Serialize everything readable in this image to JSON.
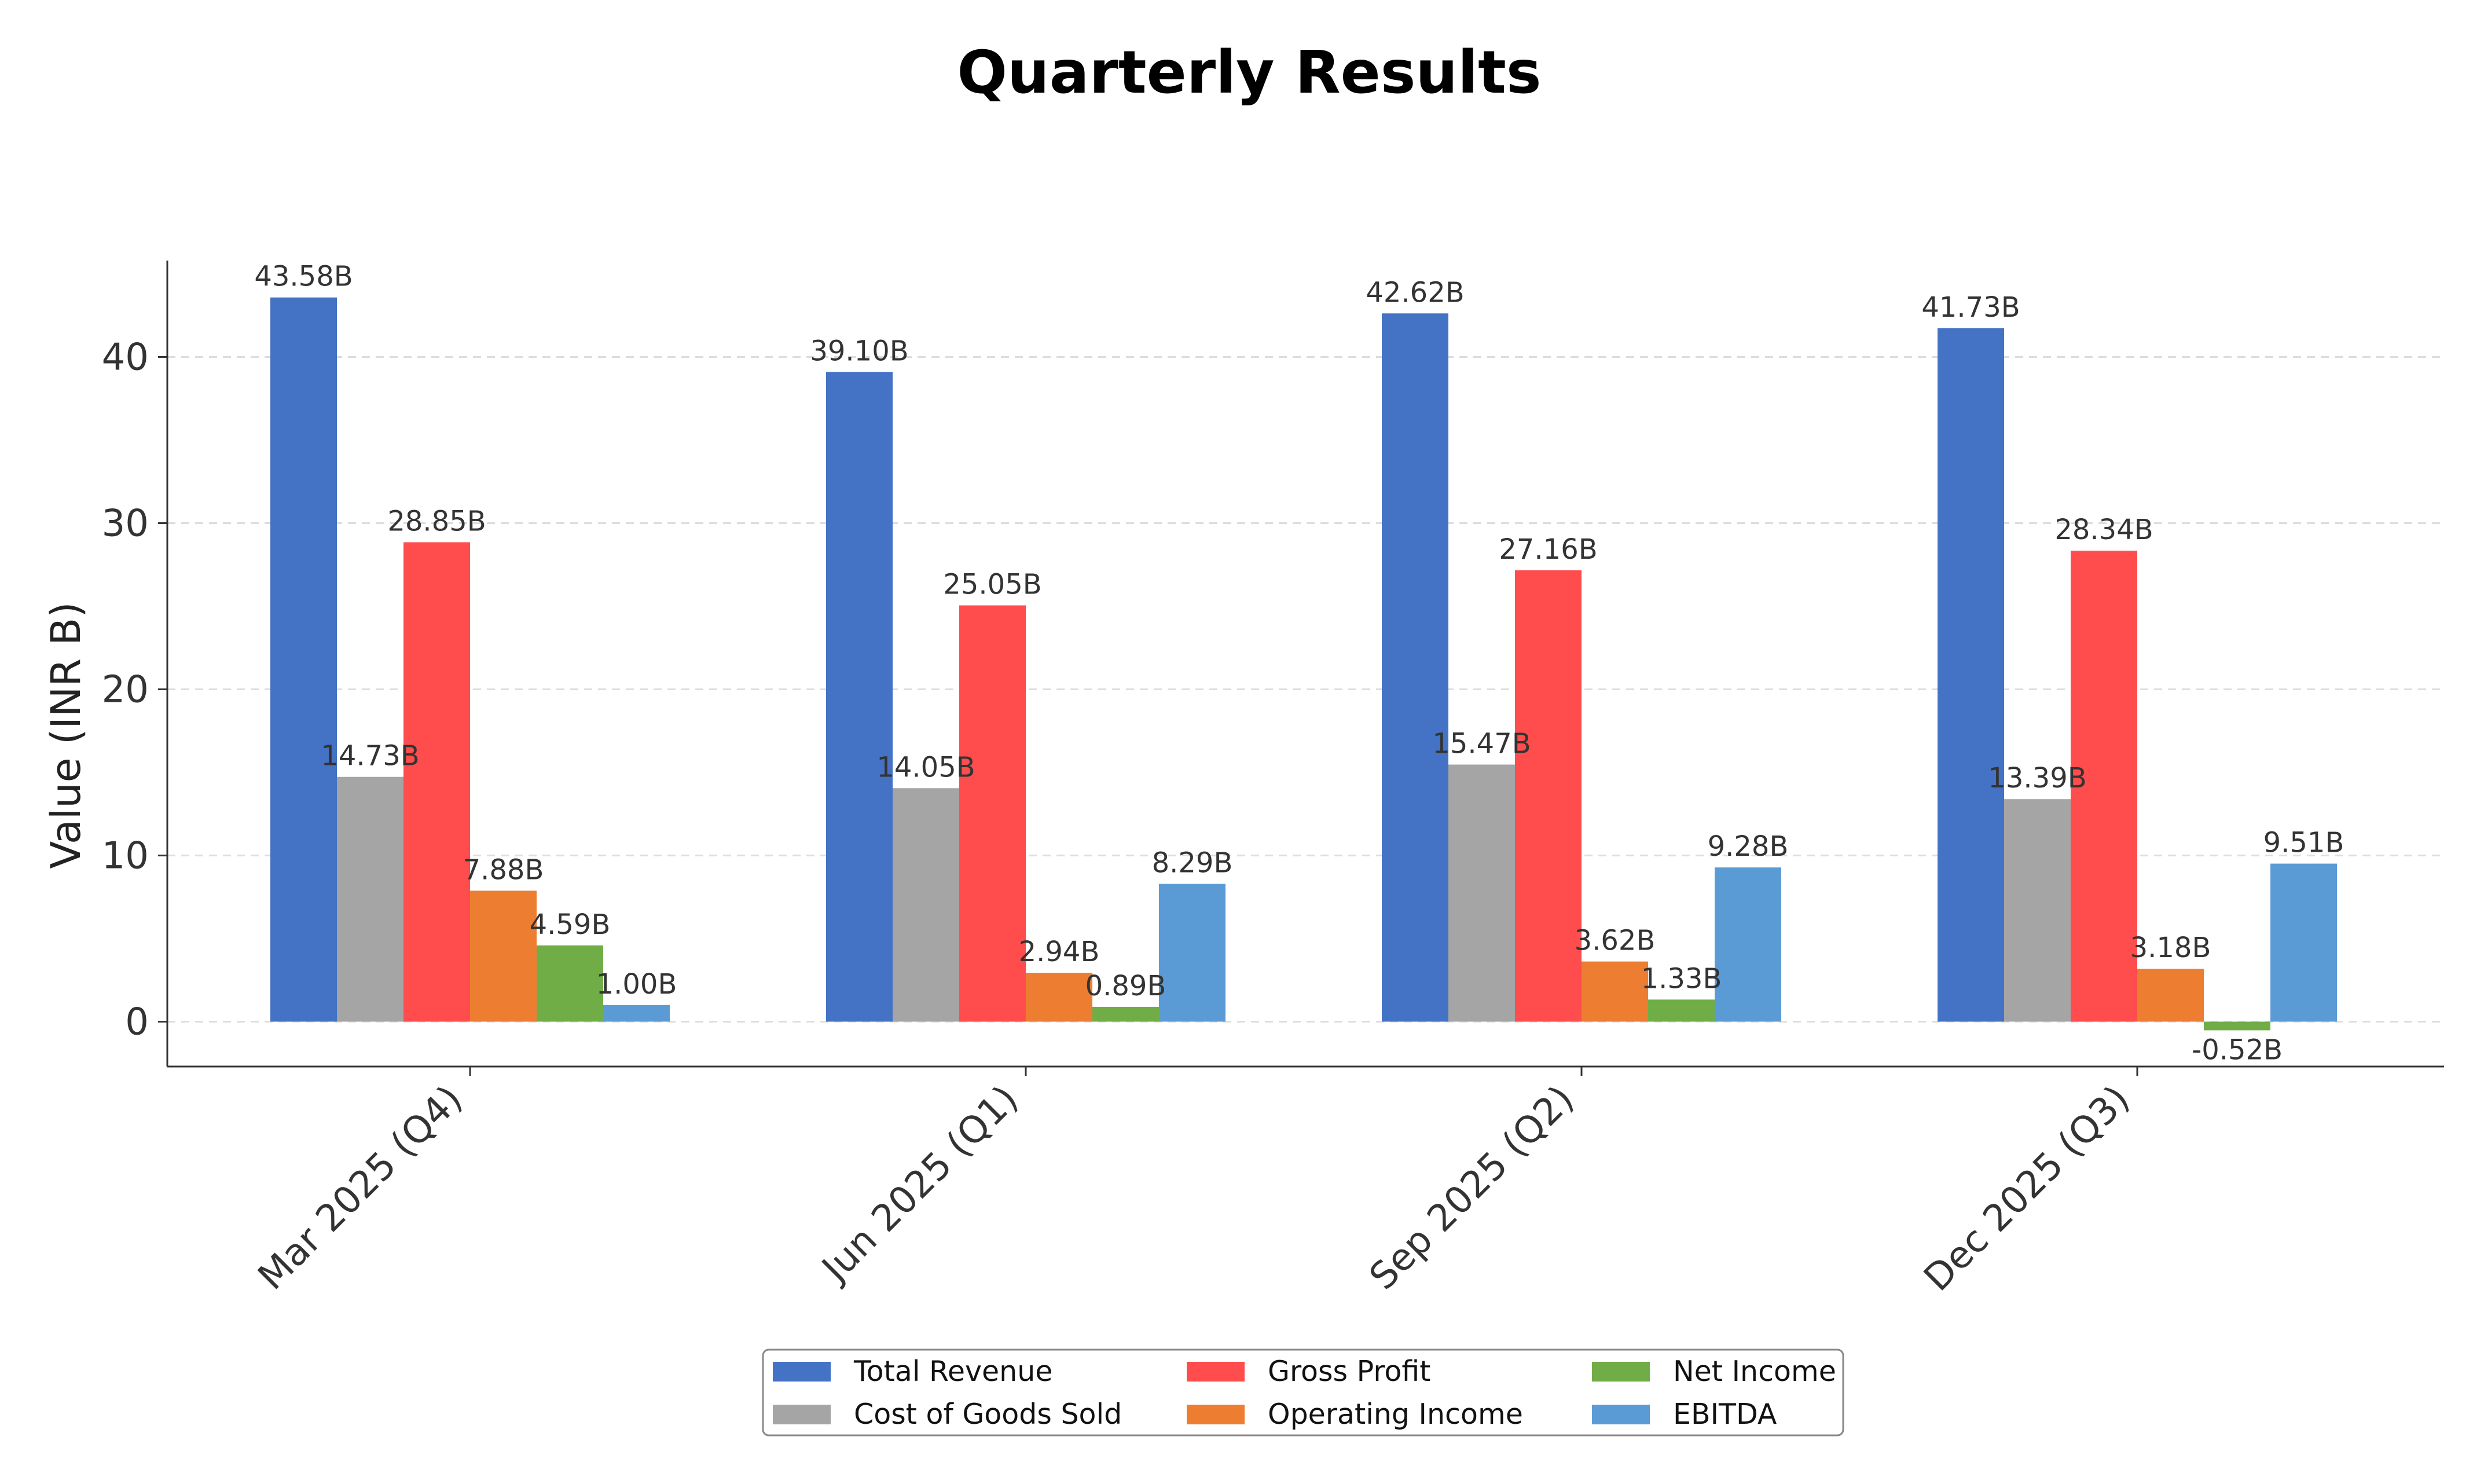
{
  "chart_data": {
    "type": "bar",
    "title": "Quarterly Results",
    "xlabel": "",
    "ylabel": "Value (INR B)",
    "ylim": [
      -2.7,
      45.8
    ],
    "yticks": [
      0,
      10,
      20,
      30,
      40
    ],
    "grid": "y-dashed",
    "legend_position": "bottom-center",
    "categories": [
      "Mar 2025 (Q4)",
      "Jun 2025 (Q1)",
      "Sep 2025 (Q2)",
      "Dec 2025 (Q3)"
    ],
    "series": [
      {
        "name": "Total Revenue",
        "color": "#4472C4",
        "values": [
          43.58,
          39.1,
          42.62,
          41.73
        ],
        "labels": [
          "43.58B",
          "39.10B",
          "42.62B",
          "41.73B"
        ]
      },
      {
        "name": "Cost of Goods Sold",
        "color": "#A5A5A5",
        "values": [
          14.73,
          14.05,
          15.47,
          13.39
        ],
        "labels": [
          "14.73B",
          "14.05B",
          "15.47B",
          "13.39B"
        ]
      },
      {
        "name": "Gross Profit",
        "color": "#FF4C4C",
        "values": [
          28.85,
          25.05,
          27.16,
          28.34
        ],
        "labels": [
          "28.85B",
          "25.05B",
          "27.16B",
          "28.34B"
        ]
      },
      {
        "name": "Operating Income",
        "color": "#ED7D31",
        "values": [
          7.88,
          2.94,
          3.62,
          3.18
        ],
        "labels": [
          "7.88B",
          "2.94B",
          "3.62B",
          "3.18B"
        ]
      },
      {
        "name": "Net Income",
        "color": "#70AD47",
        "values": [
          4.59,
          0.89,
          1.33,
          -0.52
        ],
        "labels": [
          "4.59B",
          "0.89B",
          "1.33B",
          "-0.52B"
        ]
      },
      {
        "name": "EBITDA",
        "color": "#5B9BD5",
        "values": [
          1.0,
          8.29,
          9.28,
          9.51
        ],
        "labels": [
          "1.00B",
          "8.29B",
          "9.28B",
          "9.51B"
        ]
      }
    ]
  }
}
